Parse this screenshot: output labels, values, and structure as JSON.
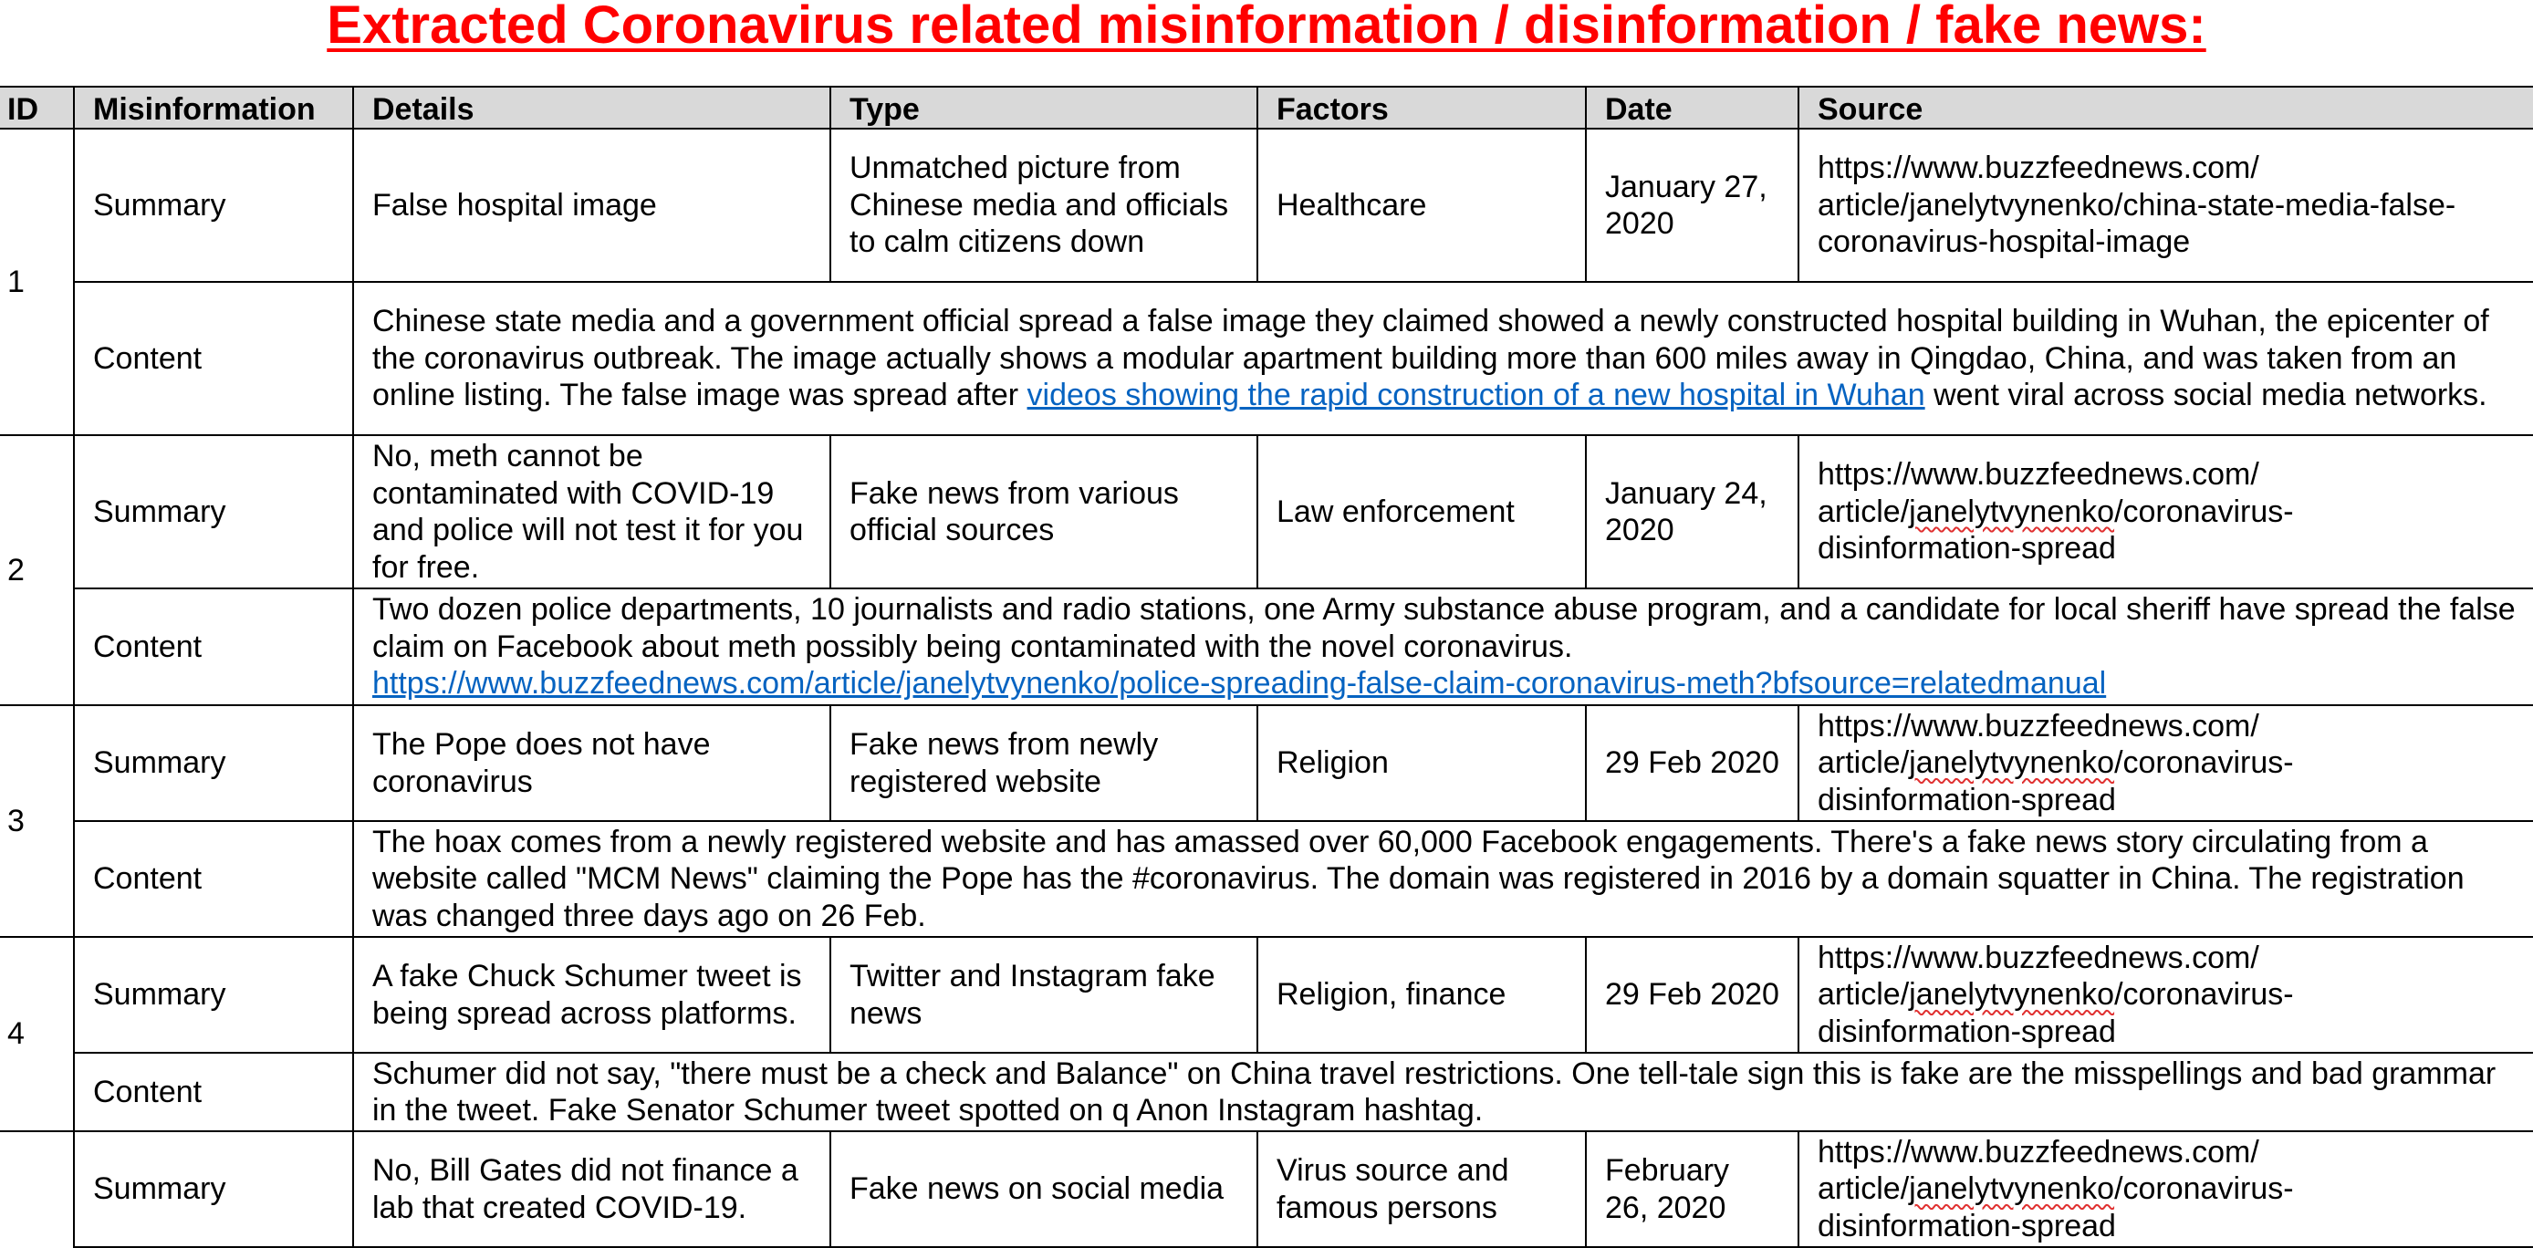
{
  "title": "Extracted Coronavirus related misinformation / disinformation / fake news:",
  "columns": [
    "ID",
    "Misinformation",
    "Details",
    "Type",
    "Factors",
    "Date",
    "Source"
  ],
  "rows": [
    {
      "id": "1",
      "summary_label": "Summary",
      "details": "False hospital image",
      "type": "Unmatched picture from Chinese media and officials to calm citizens down",
      "factors": "Healthcare",
      "date": "January 27, 2020",
      "source_lines": [
        "https://www.buzzfeednews.com/",
        "article/janelytvynenko/china-state-media-false-",
        "coronavirus-hospital-image"
      ],
      "content_label": "Content",
      "content_before": "Chinese state media and a government official spread a false image they claimed showed a newly constructed hospital building in Wuhan, the epicenter of the coronavirus outbreak. The image actually shows a modular apartment building more than 600 miles away in Qingdao, China, and was taken from an online listing. The false image was spread after ",
      "content_link": "videos showing the rapid construction of a new hospital in Wuhan",
      "content_after": " went viral across social media networks."
    },
    {
      "id": "2",
      "summary_label": "Summary",
      "details": "No, meth cannot be contaminated with COVID-19 and police will not test it for you for free.",
      "type": "Fake news from various official sources",
      "factors": "Law enforcement",
      "date": "January 24, 2020",
      "source_prefix": "https://www.buzzfeednews.com/",
      "source_mid_a": "article/",
      "source_mid_b": "janelytvynenko",
      "source_mid_c": "/coronavirus-",
      "source_tail": "disinformation-spread",
      "content_label": "Content",
      "content_text": "Two dozen police departments, 10 journalists and radio stations, one Army substance abuse program, and a candidate for local sheriff have spread the false claim on Facebook about meth possibly being contaminated with the novel coronavirus.",
      "content_link": "https://www.buzzfeednews.com/article/janelytvynenko/police-spreading-false-claim-coronavirus-meth?bfsource=relatedmanual"
    },
    {
      "id": "3",
      "summary_label": "Summary",
      "details": "The Pope does not have coronavirus",
      "type": "Fake news from newly registered website",
      "factors": "Religion",
      "date": "29 Feb 2020",
      "source_prefix": "https://www.buzzfeednews.com/",
      "source_mid_a": "article/",
      "source_mid_b": "janelytvynenko",
      "source_mid_c": "/coronavirus-",
      "source_tail": "disinformation-spread",
      "content_label": "Content",
      "content_text": "The hoax comes from a newly registered website and has amassed over 60,000 Facebook engagements. There's a fake news story circulating from a website called \"MCM News\" claiming the Pope has the #coronavirus. The domain was registered in 2016 by a domain squatter in China. The registration was changed three days ago on 26 Feb."
    },
    {
      "id": "4",
      "summary_label": "Summary",
      "details": "A fake Chuck Schumer tweet is being spread across platforms.",
      "type": "Twitter and Instagram fake news",
      "factors": "Religion, finance",
      "date": "29 Feb 2020",
      "source_prefix": "https://www.buzzfeednews.com/",
      "source_mid_a": "article/",
      "source_mid_b": "janelytvynenko",
      "source_mid_c": "/coronavirus-",
      "source_tail": "disinformation-spread",
      "content_label": "Content",
      "content_text": "Schumer did not say, \"there must be a check and Balance\" on China travel restrictions. One tell-tale sign this is fake are the misspellings and bad grammar in the tweet. Fake Senator Schumer tweet spotted on q Anon Instagram hashtag."
    },
    {
      "id": "",
      "summary_label": "Summary",
      "details": "No, Bill Gates did not finance a lab that created COVID-19.",
      "type": "Fake news on social media",
      "factors": "Virus source and famous persons",
      "date": "February 26, 2020",
      "source_prefix": "https://www.buzzfeednews.com/",
      "source_mid_a": "article/",
      "source_mid_b": "janelytvynenko",
      "source_mid_c": "/coronavirus-",
      "source_tail": "disinformation-spread"
    }
  ]
}
